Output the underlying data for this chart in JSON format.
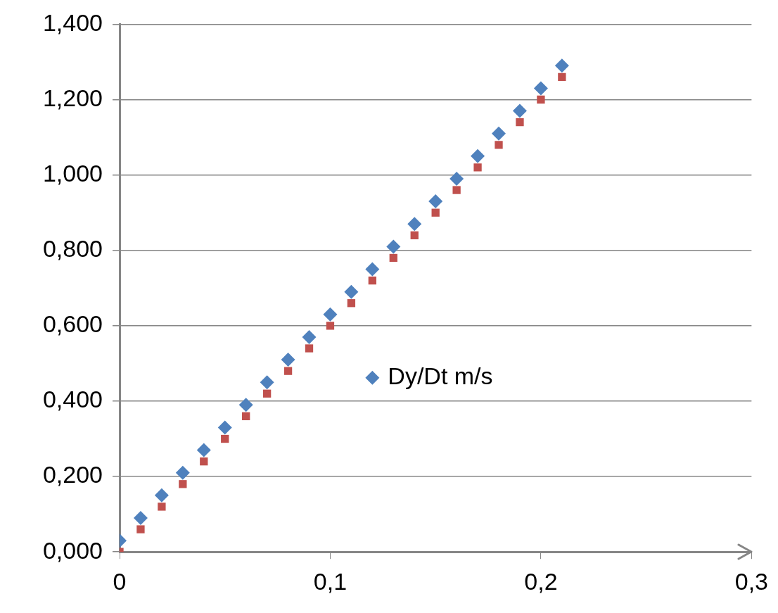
{
  "chart_data": {
    "type": "scatter",
    "legend": "center",
    "grid": "y",
    "xlim": [
      0,
      0.3
    ],
    "xticks": [
      0,
      {
        "value": 0.1,
        "label": "0,1"
      },
      {
        "value": 0.2,
        "label": "0,2"
      },
      {
        "value": 0.3,
        "label": "0,3"
      }
    ],
    "ylim": [
      0,
      1.4
    ],
    "yticks": [
      {
        "value": 0,
        "label": "0,000"
      },
      {
        "value": 0.2,
        "label": "0,200"
      },
      {
        "value": 0.4,
        "label": "0,400"
      },
      {
        "value": 0.6,
        "label": "0,600"
      },
      {
        "value": 0.8,
        "label": "0,800"
      },
      {
        "value": 1.0,
        "label": "1,000"
      },
      {
        "value": 1.2,
        "label": "1,200"
      },
      {
        "value": 1.4,
        "label": "1,400"
      }
    ],
    "x": [
      0,
      0.01,
      0.02,
      0.03,
      0.04,
      0.05,
      0.06,
      0.07,
      0.08,
      0.09,
      0.1,
      0.11,
      0.12,
      0.13,
      0.14,
      0.15,
      0.16,
      0.17,
      0.18,
      0.19,
      0.2,
      0.21
    ],
    "series": [
      {
        "name": "Dy/Dt m/s",
        "color": "#4f81bd",
        "marker": "diamond",
        "values": [
          0.03,
          0.09,
          0.15,
          0.21,
          0.27,
          0.33,
          0.39,
          0.45,
          0.51,
          0.57,
          0.63,
          0.69,
          0.75,
          0.81,
          0.87,
          0.93,
          0.99,
          1.05,
          1.11,
          1.17,
          1.23,
          1.29
        ]
      },
      {
        "color": "#c0504d",
        "marker": "square",
        "values": [
          0,
          0.06,
          0.12,
          0.18,
          0.24,
          0.3,
          0.36,
          0.42,
          0.48,
          0.54,
          0.6,
          0.66,
          0.72,
          0.78,
          0.84,
          0.9,
          0.96,
          1.02,
          1.08,
          1.14,
          1.2,
          1.26
        ]
      }
    ]
  }
}
